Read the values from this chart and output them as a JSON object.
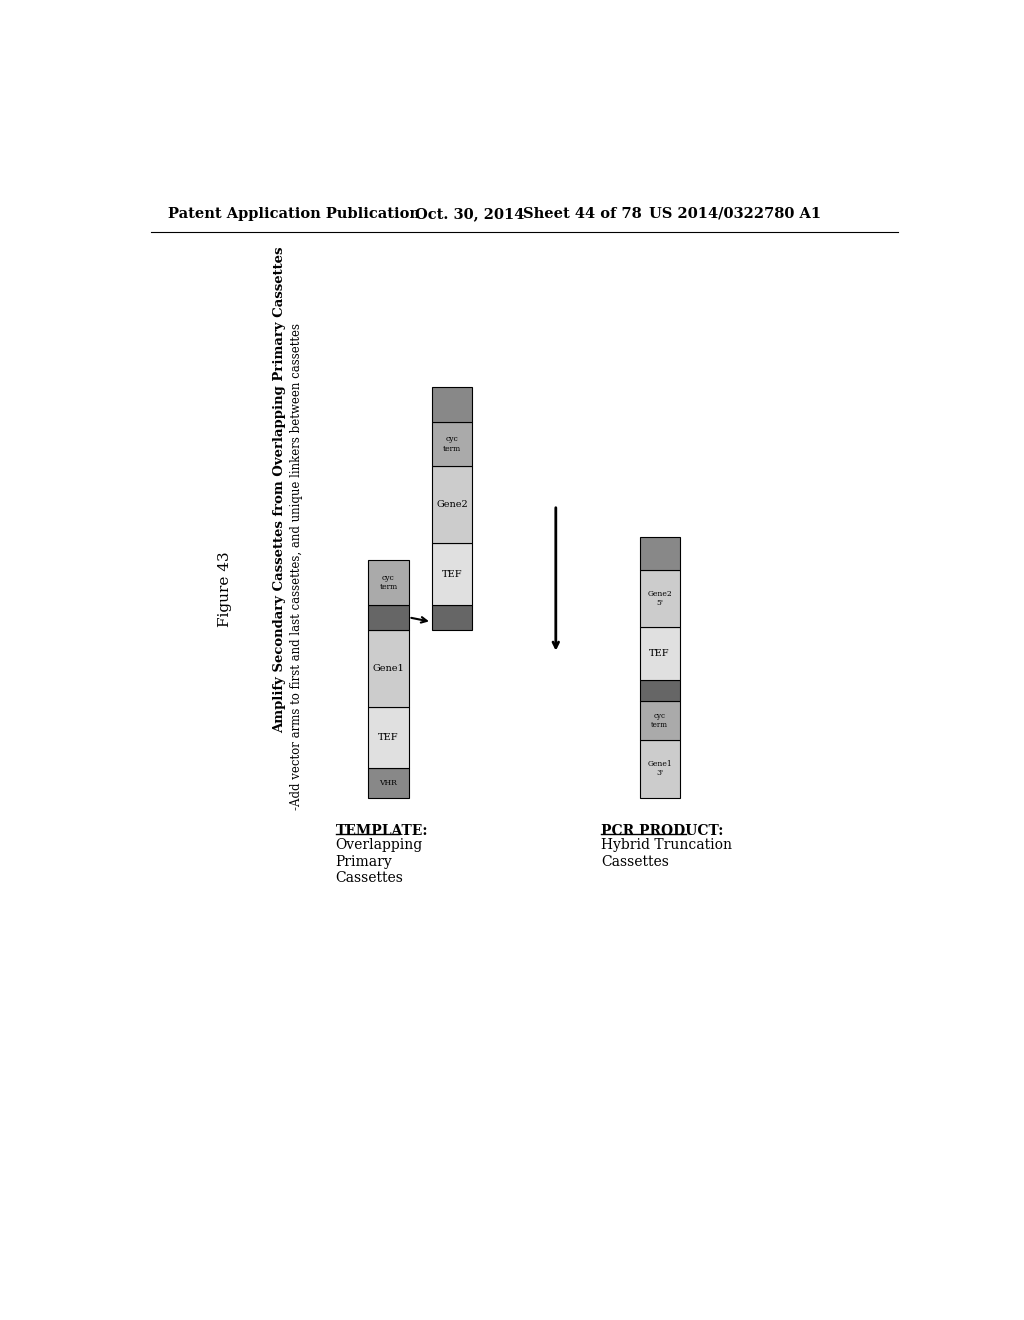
{
  "bg_color": "#ffffff",
  "header_text": "Patent Application Publication",
  "header_date": "Oct. 30, 2014",
  "header_sheet": "Sheet 44 of 78",
  "header_patent": "US 2014/0322780 A1",
  "figure_label": "Figure 43",
  "title_line1": "Amplify Secondary Cassettes from Overlapping Primary Cassettes",
  "title_line2": "-Add vector arms to first and last cassettes, and unique linkers between cassettes",
  "template_label": "TEMPLATE:",
  "template_desc": "Overlapping\nPrimary\nCassettes",
  "pcr_label": "PCR PRODUCT:",
  "pcr_desc": "Hybrid Truncation\nCassettes",
  "c_dark": "#888888",
  "c_med": "#aaaaaa",
  "c_light": "#cccccc",
  "c_vlight": "#e0e0e0",
  "c_linker": "#666666"
}
